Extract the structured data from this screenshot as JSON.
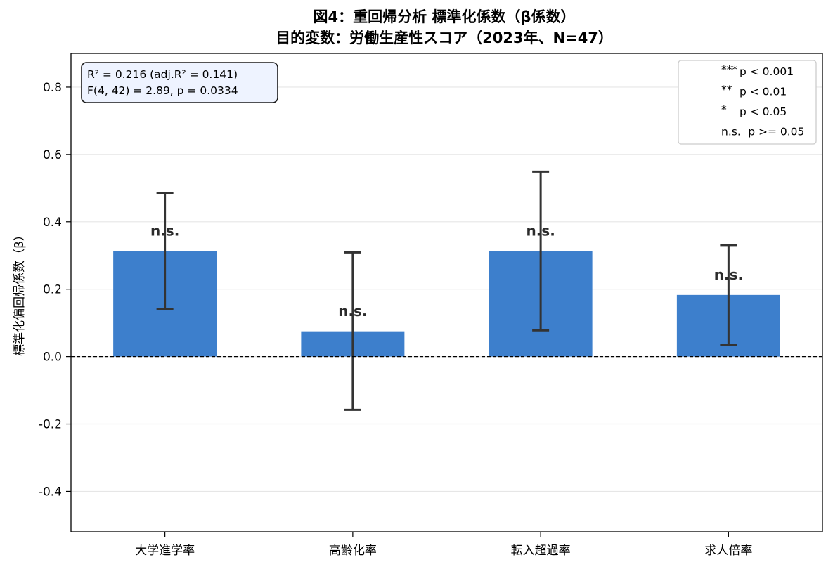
{
  "chart_data": {
    "type": "bar",
    "title": [
      "図4：重回帰分析 標準化係数（β係数）",
      "目的変数：労働生産性スコア（2023年、N=47）"
    ],
    "xlabel": "",
    "ylabel": "標準化偏回帰係数（β）",
    "ylim": [
      -0.52,
      0.9
    ],
    "yticks": [
      -0.4,
      -0.2,
      0.0,
      0.2,
      0.4,
      0.6,
      0.8
    ],
    "ytick_labels": [
      "-0.4",
      "-0.2",
      "0.0",
      "0.2",
      "0.4",
      "0.6",
      "0.8"
    ],
    "grid": "horizontal",
    "reference_line": 0,
    "categories": [
      "大学進学率",
      "高齢化率",
      "転入超過率",
      "求人倍率"
    ],
    "series": [
      {
        "values": [
          0.313,
          0.075,
          0.313,
          0.183
        ],
        "error_low": [
          0.14,
          -0.158,
          0.078,
          0.035
        ],
        "error_high": [
          0.486,
          0.309,
          0.549,
          0.331
        ],
        "significance": [
          "n.s.",
          "n.s.",
          "n.s.",
          "n.s."
        ],
        "color": "#3d7fcc"
      }
    ],
    "stats_box": {
      "line1": "R² = 0.216  (adj.R² = 0.141)",
      "line2": "F(4, 42) = 2.89, p = 0.0334"
    },
    "legend": {
      "placement": "top-right",
      "items": [
        {
          "sym": "***",
          "text": "p < 0.001"
        },
        {
          "sym": "**",
          "text": "p < 0.01"
        },
        {
          "sym": "*",
          "text": "p < 0.05"
        },
        {
          "sym": "n.s.",
          "text": "p >= 0.05"
        }
      ]
    }
  }
}
